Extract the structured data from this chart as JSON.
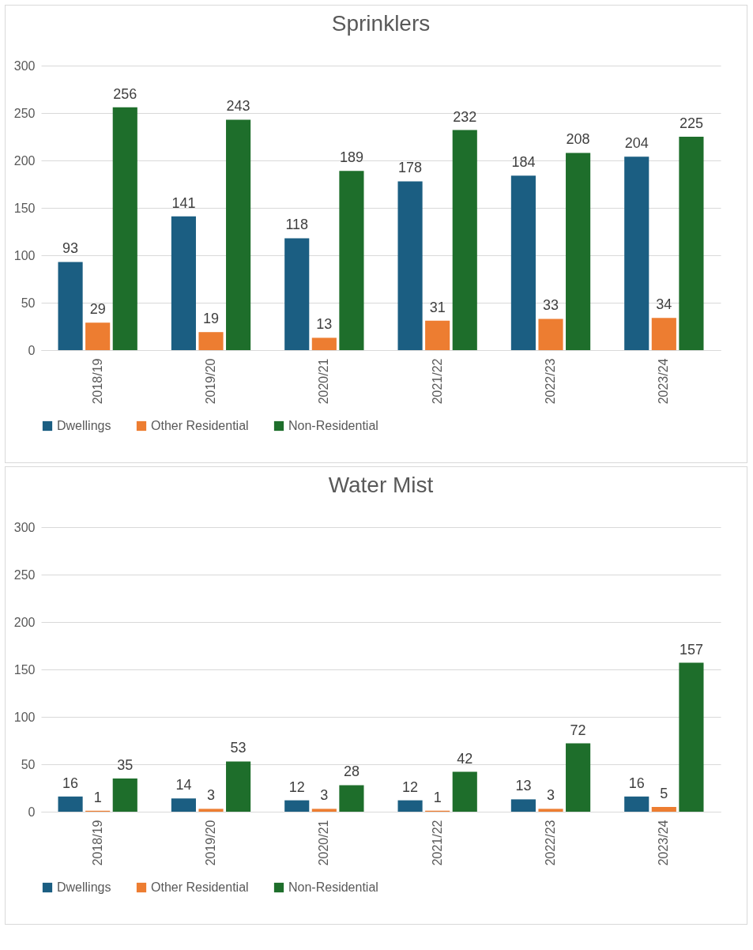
{
  "chart_data": [
    {
      "type": "bar",
      "title": "Sprinklers",
      "categories": [
        "2018/19",
        "2019/20",
        "2020/21",
        "2021/22",
        "2022/23",
        "2023/24"
      ],
      "series": [
        {
          "name": "Dwellings",
          "color": "#1b5e82",
          "values": [
            93,
            141,
            118,
            178,
            184,
            204
          ]
        },
        {
          "name": "Other Residential",
          "color": "#ed7d31",
          "values": [
            29,
            19,
            13,
            31,
            33,
            34
          ]
        },
        {
          "name": "Non-Residential",
          "color": "#1e6e2b",
          "values": [
            256,
            243,
            189,
            232,
            208,
            225
          ]
        }
      ],
      "ylim": [
        0,
        300
      ],
      "yticks": [
        0,
        50,
        100,
        150,
        200,
        250,
        300
      ],
      "grid": "y",
      "legend": "bottom",
      "data_labels": true
    },
    {
      "type": "bar",
      "title": "Water Mist",
      "categories": [
        "2018/19",
        "2019/20",
        "2020/21",
        "2021/22",
        "2022/23",
        "2023/24"
      ],
      "series": [
        {
          "name": "Dwellings",
          "color": "#1b5e82",
          "values": [
            16,
            14,
            12,
            12,
            13,
            16
          ]
        },
        {
          "name": "Other Residential",
          "color": "#ed7d31",
          "values": [
            1,
            3,
            3,
            1,
            3,
            5
          ]
        },
        {
          "name": "Non-Residential",
          "color": "#1e6e2b",
          "values": [
            35,
            53,
            28,
            42,
            72,
            157
          ]
        }
      ],
      "ylim": [
        0,
        300
      ],
      "yticks": [
        0,
        50,
        100,
        150,
        200,
        250,
        300
      ],
      "grid": "y",
      "legend": "bottom",
      "data_labels": true
    }
  ]
}
